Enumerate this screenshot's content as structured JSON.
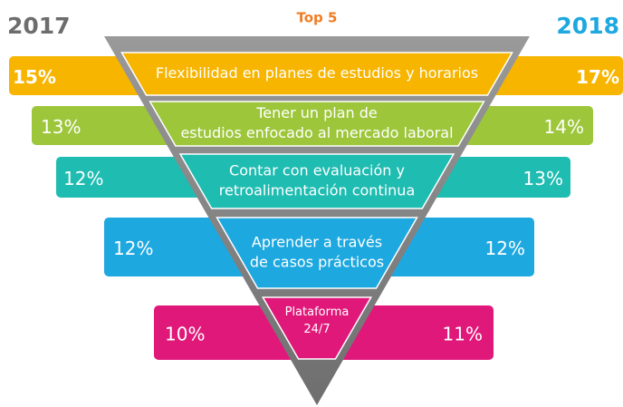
{
  "title": "Top 5",
  "year_left": "2017",
  "year_right": "2018",
  "items": [
    {
      "label": [
        "Flexibilidad en planes de estudios y horarios"
      ],
      "left": "15%",
      "right": "17%"
    },
    {
      "label": [
        "Tener un plan de",
        "estudios enfocado al mercado laboral"
      ],
      "left": "13%",
      "right": "14%"
    },
    {
      "label": [
        "Contar con evaluación y",
        "retroalimentación continua"
      ],
      "left": "12%",
      "right": "13%"
    },
    {
      "label": [
        "Aprender a través",
        "de casos prácticos"
      ],
      "left": "12%",
      "right": "12%"
    },
    {
      "label": [
        "Plataforma",
        "24/7"
      ],
      "left": "10%",
      "right": "11%"
    }
  ]
}
